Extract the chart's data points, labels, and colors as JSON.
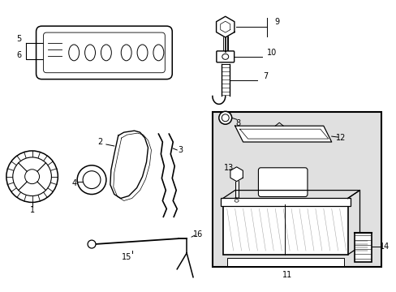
{
  "bg_color": "#ffffff",
  "line_color": "#000000",
  "box_bg": "#e0e0e0",
  "figsize": [
    4.89,
    3.6
  ],
  "dpi": 100
}
